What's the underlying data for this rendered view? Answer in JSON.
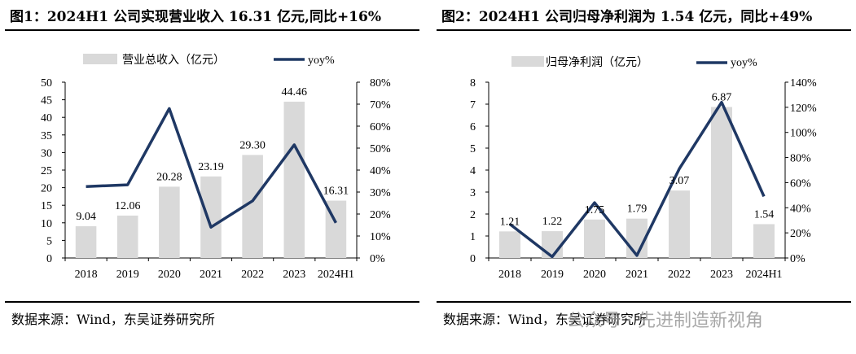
{
  "panels": [
    {
      "title": "图1：2024H1 公司实现营业收入 16.31 亿元,同比+16%",
      "source": "数据来源：Wind，东吴证券研究所",
      "watermark": "",
      "bar_color": "#d9d9d9",
      "line_color": "#1f3864"
    },
    {
      "title": "图2：2024H1 公司归母净利润为 1.54 亿元，同比+49%",
      "source": "数据来源：Wind，东吴证券研究所",
      "watermark": "公众号 · 先进制造新视角",
      "bar_color": "#d9d9d9",
      "line_color": "#1f3864"
    }
  ],
  "chart_data": [
    {
      "type": "bar",
      "categories": [
        "2018",
        "2019",
        "2020",
        "2021",
        "2022",
        "2023",
        "2024H1"
      ],
      "series": [
        {
          "name": "营业总收入（亿元）",
          "kind": "bar",
          "axis": "left",
          "values": [
            9.04,
            12.06,
            20.28,
            23.19,
            29.3,
            44.46,
            16.31
          ],
          "labels": [
            "9.04",
            "12.06",
            "20.28",
            "23.19",
            "29.30",
            "44.46",
            "16.31"
          ]
        },
        {
          "name": "yoy%",
          "kind": "line",
          "axis": "right",
          "values": [
            32.5,
            33.3,
            68.0,
            14.0,
            26.0,
            51.5,
            16.0
          ]
        }
      ],
      "ylim_left": [
        0,
        50
      ],
      "yticks_left": [
        "0",
        "5",
        "10",
        "15",
        "20",
        "25",
        "30",
        "35",
        "40",
        "45",
        "50"
      ],
      "ylim_right": [
        0,
        80
      ],
      "yticks_right": [
        "0%",
        "10%",
        "20%",
        "30%",
        "40%",
        "50%",
        "60%",
        "70%",
        "80%"
      ],
      "legend": "top",
      "grid": false
    },
    {
      "type": "bar",
      "categories": [
        "2018",
        "2019",
        "2020",
        "2021",
        "2022",
        "2023",
        "2024H1"
      ],
      "series": [
        {
          "name": "归母净利润（亿元）",
          "kind": "bar",
          "axis": "left",
          "values": [
            1.21,
            1.22,
            1.75,
            1.79,
            3.07,
            6.87,
            1.54
          ],
          "labels": [
            "1.21",
            "1.22",
            "1.75",
            "1.79",
            "3.07",
            "6.87",
            "1.54"
          ]
        },
        {
          "name": "yoy%",
          "kind": "line",
          "axis": "right",
          "values": [
            27,
            1,
            44,
            2,
            71,
            124,
            49
          ]
        }
      ],
      "ylim_left": [
        0,
        8
      ],
      "yticks_left": [
        "0",
        "1",
        "2",
        "3",
        "4",
        "5",
        "6",
        "7",
        "8"
      ],
      "ylim_right": [
        0,
        140
      ],
      "yticks_right": [
        "0%",
        "20%",
        "40%",
        "60%",
        "80%",
        "100%",
        "120%",
        "140%"
      ],
      "legend": "top",
      "grid": false
    }
  ]
}
